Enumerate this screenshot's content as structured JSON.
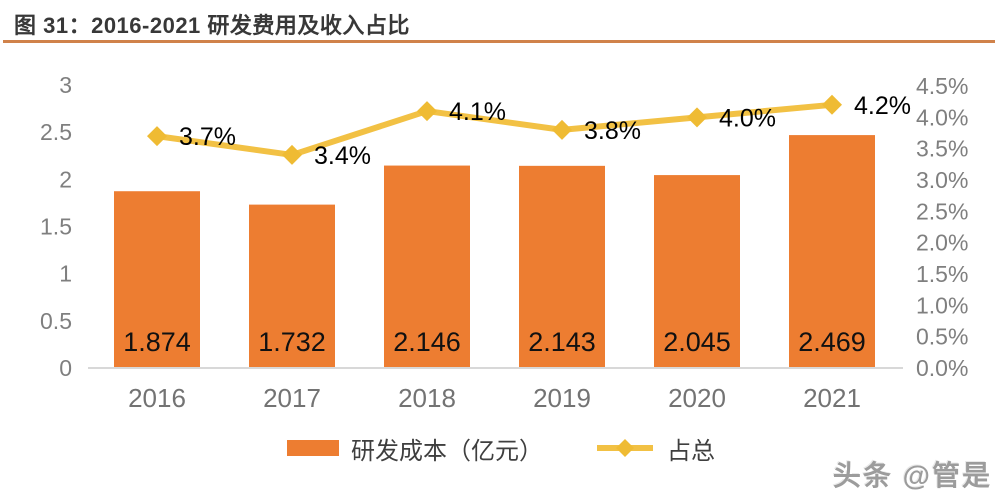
{
  "title": "图 31：2016-2021 研发费用及收入占比",
  "legend": {
    "bar_label": "研发成本（亿元）",
    "line_label": "占总"
  },
  "watermark": "头条 @管是",
  "colors": {
    "bar": "#ED7D31",
    "line": "#F2C144",
    "marker": "#EFBB33",
    "title_rule": "#D0824A",
    "axis_text": "#7F7F7F",
    "x_label_text": "#737373",
    "bar_value_text": "#111111",
    "pct_label_text": "#000000",
    "axis_line": "#D8D8D8"
  },
  "chart_data": {
    "type": "bar",
    "subtype": "combo-bar-line-dual-axis",
    "title": "图 31：2016-2021 研发费用及收入占比",
    "categories": [
      "2016",
      "2017",
      "2018",
      "2019",
      "2020",
      "2021"
    ],
    "series": [
      {
        "name": "研发成本（亿元）",
        "type": "bar",
        "axis": "left",
        "values": [
          1.874,
          1.732,
          2.146,
          2.143,
          2.045,
          2.469
        ],
        "labels": [
          "1.874",
          "1.732",
          "2.146",
          "2.143",
          "2.045",
          "2.469"
        ],
        "color": "#ED7D31"
      },
      {
        "name": "占总",
        "type": "line",
        "axis": "right",
        "values": [
          3.7,
          3.4,
          4.1,
          3.8,
          4.0,
          4.2
        ],
        "labels": [
          "3.7%",
          "3.4%",
          "4.1%",
          "3.8%",
          "4.0%",
          "4.2%"
        ],
        "color": "#F2C144",
        "marker": "diamond"
      }
    ],
    "left_axis": {
      "min": 0,
      "max": 3,
      "step": 0.5,
      "ticks": [
        "3",
        "2.5",
        "2",
        "1.5",
        "1",
        "0.5",
        "0"
      ]
    },
    "right_axis": {
      "min": 0,
      "max": 4.5,
      "step": 0.5,
      "ticks": [
        "4.5%",
        "4.0%",
        "3.5%",
        "3.0%",
        "2.5%",
        "2.0%",
        "1.5%",
        "1.0%",
        "0.5%",
        "0.0%"
      ]
    },
    "grid": false,
    "legend_position": "bottom",
    "xlabel": "",
    "ylabel_left": "",
    "ylabel_right": ""
  }
}
